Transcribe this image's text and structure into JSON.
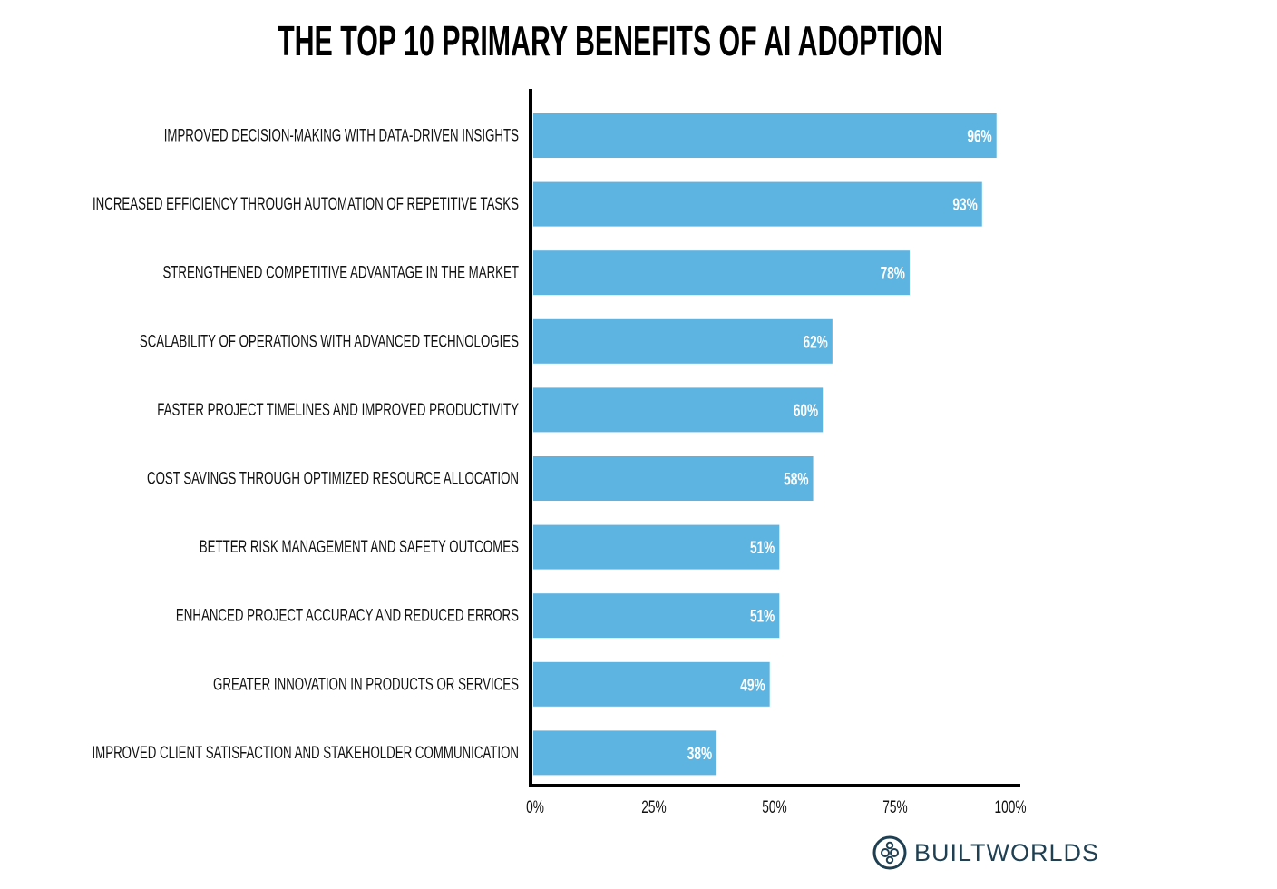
{
  "chart_data": {
    "type": "bar",
    "orientation": "horizontal",
    "title": "THE TOP 10 PRIMARY BENEFITS OF AI ADOPTION",
    "categories": [
      "IMPROVED DECISION-MAKING WITH DATA-DRIVEN INSIGHTS",
      "INCREASED EFFICIENCY THROUGH AUTOMATION OF REPETITIVE TASKS",
      "STRENGTHENED COMPETITIVE ADVANTAGE IN THE MARKET",
      "SCALABILITY OF OPERATIONS WITH ADVANCED TECHNOLOGIES",
      "FASTER PROJECT TIMELINES AND IMPROVED PRODUCTIVITY",
      "COST SAVINGS THROUGH OPTIMIZED RESOURCE ALLOCATION",
      "BETTER RISK MANAGEMENT AND SAFETY OUTCOMES",
      "ENHANCED PROJECT ACCURACY AND REDUCED ERRORS",
      "GREATER INNOVATION IN PRODUCTS OR SERVICES",
      "IMPROVED CLIENT SATISFACTION AND STAKEHOLDER COMMUNICATION"
    ],
    "values": [
      96,
      93,
      78,
      62,
      60,
      58,
      51,
      51,
      49,
      38
    ],
    "value_labels": [
      "96%",
      "93%",
      "78%",
      "62%",
      "60%",
      "58%",
      "51%",
      "51%",
      "49%",
      "38%"
    ],
    "xlim": [
      0,
      100
    ],
    "xticks": [
      0,
      25,
      50,
      75,
      100
    ],
    "xtick_labels": [
      "0%",
      "25%",
      "50%",
      "75%",
      "100%"
    ],
    "xlabel": "",
    "ylabel": "",
    "grid": false,
    "bar_color": "#5db4e0"
  },
  "brand": {
    "name": "BUILTWORLDS",
    "color": "#1f3f52"
  }
}
